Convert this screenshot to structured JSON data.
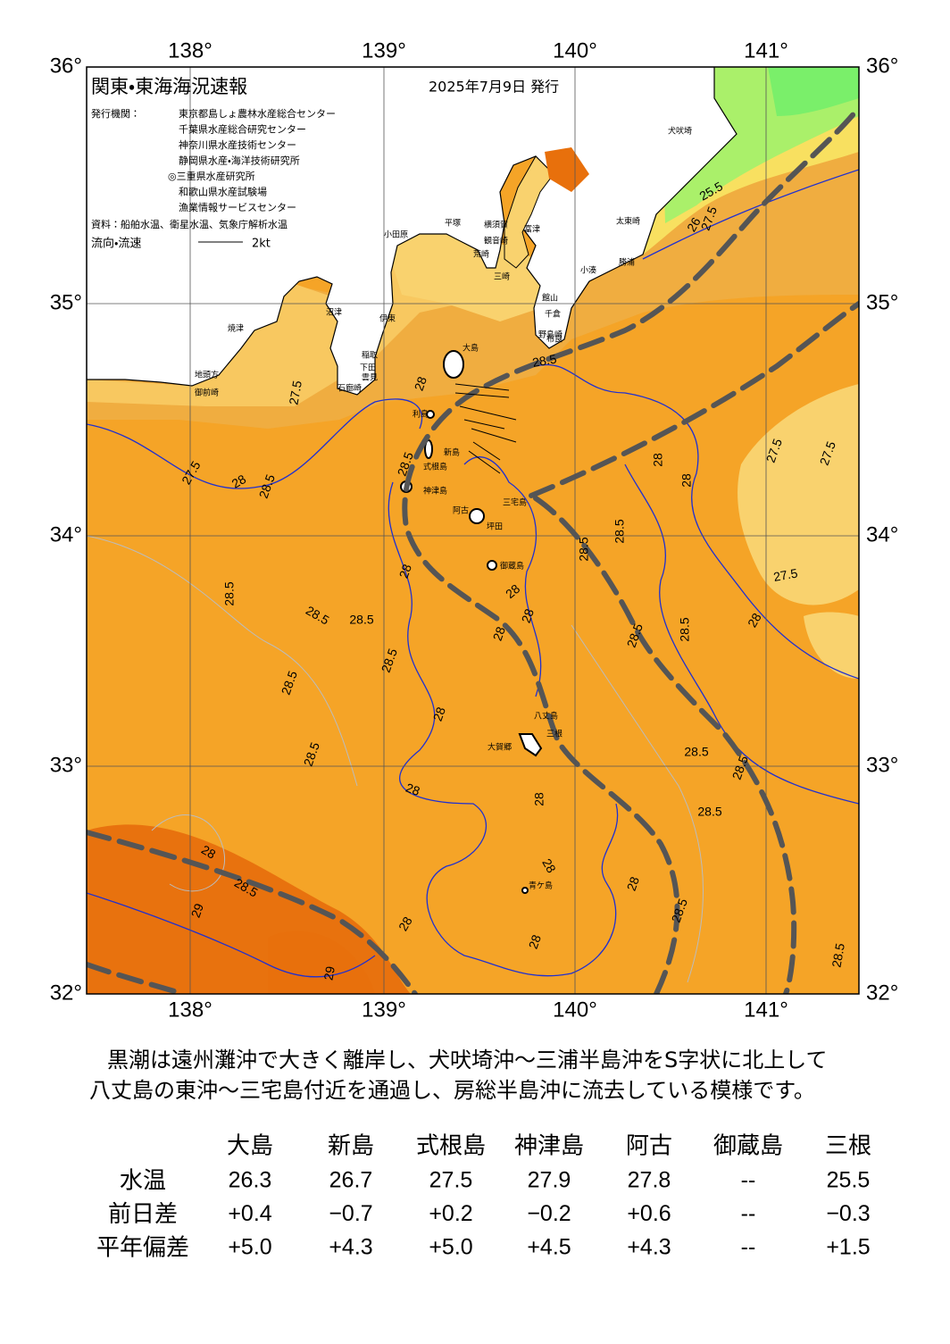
{
  "header": {
    "title": "関東・東海海況速報",
    "date": "2025年7月9日 発行"
  },
  "issuers": {
    "label": "発行機関：",
    "names": [
      "東京都島しょ農林水産総合センター",
      "千葉県水産総合研究センター",
      "神奈川県水産技術センター",
      "静岡県水産・海洋技術研究所",
      "◎三重県水産研究所",
      "和歌山県水産試験場",
      "漁業情報サービスセンター"
    ]
  },
  "source": "資料：船舶水温、衛星水温、気象庁解析水温",
  "legend": {
    "label": "流向・流速",
    "scale": "2kt"
  },
  "map": {
    "lon_labels": [
      "138°",
      "139°",
      "140°",
      "141°"
    ],
    "lat_labels": [
      "36°",
      "35°",
      "34°",
      "33°",
      "32°"
    ],
    "places": [
      "大島",
      "利島",
      "新島",
      "式根島",
      "神津島",
      "三宅島",
      "阿古",
      "坪田",
      "御蔵島",
      "八丈島",
      "大賀郷",
      "三根",
      "青ケ島",
      "小田原",
      "平塚",
      "横須賀",
      "観音崎",
      "荒崎",
      "三崎",
      "富津",
      "館山",
      "千倉",
      "野島崎",
      "布良",
      "勝浦",
      "小湊",
      "太東崎",
      "犬吠埼",
      "沼津",
      "伊東",
      "稲取",
      "下田",
      "雲見",
      "石廊崎",
      "地頭方",
      "御前崎",
      "焼津"
    ],
    "contour_labels": [
      "27.5",
      "27.5",
      "28",
      "28.5",
      "28",
      "28.5",
      "28",
      "28.5",
      "28.5",
      "28.5",
      "28.5",
      "28.5",
      "28.5",
      "28",
      "28",
      "28",
      "28.5",
      "29",
      "28",
      "29",
      "28",
      "28",
      "28",
      "28.5",
      "28",
      "28",
      "28",
      "28",
      "28.5",
      "28.5",
      "28",
      "28",
      "27.5",
      "27.5",
      "27.5",
      "28.5",
      "28.5",
      "28",
      "28.5",
      "28.5",
      "28.5",
      "28.5",
      "28.5",
      "27.5",
      "25.5",
      "26"
    ]
  },
  "description": [
    "黒潮は遠州灘沖で大きく離岸し、犬吠埼沖～三浦半島沖をS字状に北上して",
    "八丈島の東沖～三宅島付近を通過し、房総半島沖に流去している模様です。"
  ],
  "table": {
    "columns": [
      "大島",
      "新島",
      "式根島",
      "神津島",
      "阿古",
      "御蔵島",
      "三根"
    ],
    "rows": [
      {
        "label": "水温",
        "values": [
          "26.3",
          "26.7",
          "27.5",
          "27.9",
          "27.8",
          "--",
          "25.5"
        ]
      },
      {
        "label": "前日差",
        "values": [
          "+0.4",
          "−0.7",
          "+0.2",
          "−0.2",
          "+0.6",
          "--",
          "−0.3"
        ]
      },
      {
        "label": "平年偏差",
        "values": [
          "+5.0",
          "+4.3",
          "+5.0",
          "+4.5",
          "+4.3",
          "--",
          "+1.5"
        ]
      }
    ]
  }
}
